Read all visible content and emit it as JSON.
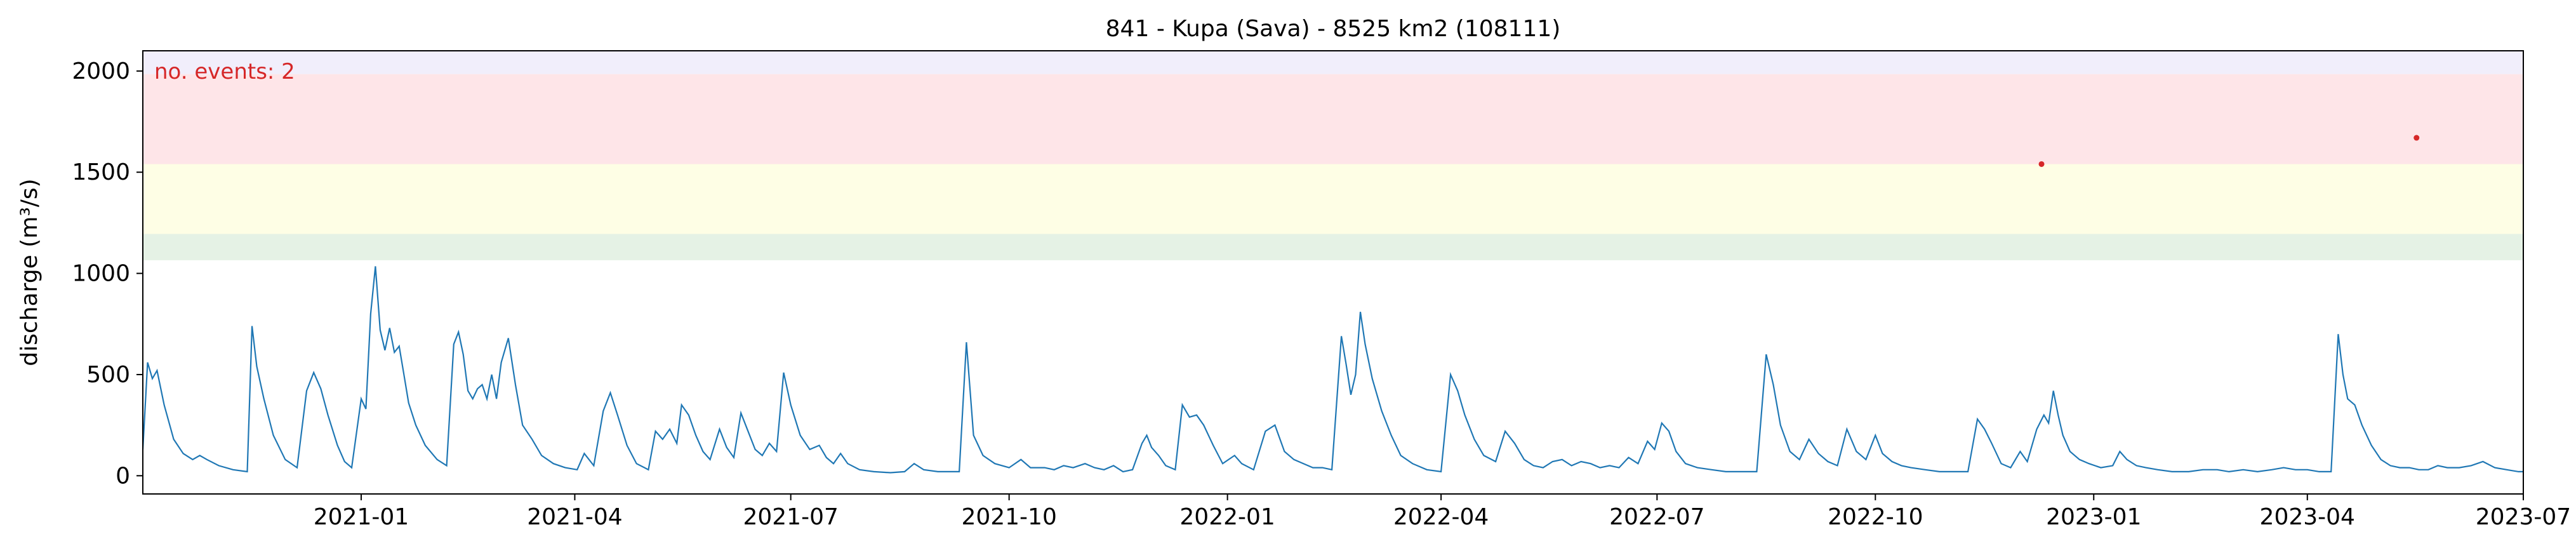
{
  "chart_data": {
    "type": "line",
    "title": "841 - Kupa (Sava) - 8525 km2 (108111)",
    "ylabel": "discharge (m³/s)",
    "xlabel": "",
    "annotation": "no. events: 2",
    "xlim": [
      "2020-10-01",
      "2023-07-01"
    ],
    "ylim": [
      -90,
      2100
    ],
    "x_ticks": [
      {
        "date": "2021-01-01",
        "label": "2021-01"
      },
      {
        "date": "2021-04-01",
        "label": "2021-04"
      },
      {
        "date": "2021-07-01",
        "label": "2021-07"
      },
      {
        "date": "2021-10-01",
        "label": "2021-10"
      },
      {
        "date": "2022-01-01",
        "label": "2022-01"
      },
      {
        "date": "2022-04-01",
        "label": "2022-04"
      },
      {
        "date": "2022-07-01",
        "label": "2022-07"
      },
      {
        "date": "2022-10-01",
        "label": "2022-10"
      },
      {
        "date": "2023-01-01",
        "label": "2023-01"
      },
      {
        "date": "2023-04-01",
        "label": "2023-04"
      },
      {
        "date": "2023-07-01",
        "label": "2023-07"
      }
    ],
    "y_ticks": [
      0,
      500,
      1000,
      1500,
      2000
    ],
    "bands": [
      {
        "y0": 1065,
        "y1": 1195,
        "color": "#e5f2e5"
      },
      {
        "y0": 1195,
        "y1": 1540,
        "color": "#fefee5"
      },
      {
        "y0": 1540,
        "y1": 1985,
        "color": "#fee5e8"
      },
      {
        "y0": 1985,
        "y1": 2100,
        "color": "#f1eefb"
      }
    ],
    "series": [
      {
        "color": "#1f77b4",
        "points": [
          [
            "2020-10-01",
            130
          ],
          [
            "2020-10-03",
            560
          ],
          [
            "2020-10-05",
            480
          ],
          [
            "2020-10-07",
            520
          ],
          [
            "2020-10-10",
            350
          ],
          [
            "2020-10-14",
            180
          ],
          [
            "2020-10-18",
            110
          ],
          [
            "2020-10-22",
            80
          ],
          [
            "2020-10-25",
            100
          ],
          [
            "2020-10-28",
            80
          ],
          [
            "2020-11-02",
            50
          ],
          [
            "2020-11-08",
            30
          ],
          [
            "2020-11-14",
            20
          ],
          [
            "2020-11-16",
            740
          ],
          [
            "2020-11-18",
            540
          ],
          [
            "2020-11-21",
            380
          ],
          [
            "2020-11-25",
            200
          ],
          [
            "2020-11-30",
            80
          ],
          [
            "2020-12-05",
            40
          ],
          [
            "2020-12-09",
            420
          ],
          [
            "2020-12-12",
            510
          ],
          [
            "2020-12-15",
            430
          ],
          [
            "2020-12-18",
            300
          ],
          [
            "2020-12-22",
            150
          ],
          [
            "2020-12-25",
            70
          ],
          [
            "2020-12-28",
            40
          ],
          [
            "2021-01-01",
            380
          ],
          [
            "2021-01-03",
            330
          ],
          [
            "2021-01-05",
            800
          ],
          [
            "2021-01-07",
            1035
          ],
          [
            "2021-01-09",
            720
          ],
          [
            "2021-01-11",
            620
          ],
          [
            "2021-01-13",
            730
          ],
          [
            "2021-01-15",
            610
          ],
          [
            "2021-01-17",
            640
          ],
          [
            "2021-01-19",
            500
          ],
          [
            "2021-01-21",
            360
          ],
          [
            "2021-01-24",
            250
          ],
          [
            "2021-01-28",
            150
          ],
          [
            "2021-02-02",
            80
          ],
          [
            "2021-02-06",
            50
          ],
          [
            "2021-02-09",
            650
          ],
          [
            "2021-02-11",
            710
          ],
          [
            "2021-02-13",
            600
          ],
          [
            "2021-02-15",
            420
          ],
          [
            "2021-02-17",
            380
          ],
          [
            "2021-02-19",
            430
          ],
          [
            "2021-02-21",
            450
          ],
          [
            "2021-02-23",
            380
          ],
          [
            "2021-02-25",
            500
          ],
          [
            "2021-02-27",
            380
          ],
          [
            "2021-03-01",
            560
          ],
          [
            "2021-03-04",
            680
          ],
          [
            "2021-03-07",
            450
          ],
          [
            "2021-03-10",
            250
          ],
          [
            "2021-03-14",
            180
          ],
          [
            "2021-03-18",
            100
          ],
          [
            "2021-03-23",
            60
          ],
          [
            "2021-03-28",
            40
          ],
          [
            "2021-04-02",
            30
          ],
          [
            "2021-04-05",
            110
          ],
          [
            "2021-04-09",
            50
          ],
          [
            "2021-04-13",
            320
          ],
          [
            "2021-04-16",
            410
          ],
          [
            "2021-04-19",
            300
          ],
          [
            "2021-04-23",
            150
          ],
          [
            "2021-04-27",
            60
          ],
          [
            "2021-05-02",
            30
          ],
          [
            "2021-05-05",
            220
          ],
          [
            "2021-05-08",
            180
          ],
          [
            "2021-05-11",
            230
          ],
          [
            "2021-05-14",
            160
          ],
          [
            "2021-05-16",
            350
          ],
          [
            "2021-05-19",
            300
          ],
          [
            "2021-05-22",
            200
          ],
          [
            "2021-05-25",
            120
          ],
          [
            "2021-05-28",
            80
          ],
          [
            "2021-06-01",
            230
          ],
          [
            "2021-06-04",
            140
          ],
          [
            "2021-06-07",
            90
          ],
          [
            "2021-06-10",
            310
          ],
          [
            "2021-06-13",
            220
          ],
          [
            "2021-06-16",
            130
          ],
          [
            "2021-06-19",
            100
          ],
          [
            "2021-06-22",
            160
          ],
          [
            "2021-06-25",
            120
          ],
          [
            "2021-06-28",
            510
          ],
          [
            "2021-07-01",
            350
          ],
          [
            "2021-07-05",
            200
          ],
          [
            "2021-07-09",
            130
          ],
          [
            "2021-07-13",
            150
          ],
          [
            "2021-07-16",
            90
          ],
          [
            "2021-07-19",
            60
          ],
          [
            "2021-07-22",
            110
          ],
          [
            "2021-07-25",
            60
          ],
          [
            "2021-07-30",
            30
          ],
          [
            "2021-08-05",
            20
          ],
          [
            "2021-08-12",
            15
          ],
          [
            "2021-08-18",
            20
          ],
          [
            "2021-08-22",
            60
          ],
          [
            "2021-08-26",
            30
          ],
          [
            "2021-09-01",
            20
          ],
          [
            "2021-09-10",
            20
          ],
          [
            "2021-09-13",
            660
          ],
          [
            "2021-09-16",
            200
          ],
          [
            "2021-09-20",
            100
          ],
          [
            "2021-09-25",
            60
          ],
          [
            "2021-10-01",
            40
          ],
          [
            "2021-10-06",
            80
          ],
          [
            "2021-10-10",
            40
          ],
          [
            "2021-10-16",
            40
          ],
          [
            "2021-10-20",
            30
          ],
          [
            "2021-10-24",
            50
          ],
          [
            "2021-10-28",
            40
          ],
          [
            "2021-11-02",
            60
          ],
          [
            "2021-11-06",
            40
          ],
          [
            "2021-11-10",
            30
          ],
          [
            "2021-11-14",
            50
          ],
          [
            "2021-11-18",
            20
          ],
          [
            "2021-11-22",
            30
          ],
          [
            "2021-11-26",
            160
          ],
          [
            "2021-11-28",
            200
          ],
          [
            "2021-11-30",
            140
          ],
          [
            "2021-12-03",
            100
          ],
          [
            "2021-12-06",
            50
          ],
          [
            "2021-12-10",
            30
          ],
          [
            "2021-12-13",
            350
          ],
          [
            "2021-12-16",
            290
          ],
          [
            "2021-12-19",
            300
          ],
          [
            "2021-12-22",
            250
          ],
          [
            "2021-12-26",
            150
          ],
          [
            "2021-12-30",
            60
          ],
          [
            "2022-01-04",
            100
          ],
          [
            "2022-01-07",
            60
          ],
          [
            "2022-01-12",
            30
          ],
          [
            "2022-01-17",
            220
          ],
          [
            "2022-01-21",
            250
          ],
          [
            "2022-01-25",
            120
          ],
          [
            "2022-01-29",
            80
          ],
          [
            "2022-02-02",
            60
          ],
          [
            "2022-02-06",
            40
          ],
          [
            "2022-02-10",
            40
          ],
          [
            "2022-02-14",
            30
          ],
          [
            "2022-02-18",
            690
          ],
          [
            "2022-02-20",
            550
          ],
          [
            "2022-02-22",
            400
          ],
          [
            "2022-02-24",
            500
          ],
          [
            "2022-02-26",
            810
          ],
          [
            "2022-02-28",
            650
          ],
          [
            "2022-03-03",
            480
          ],
          [
            "2022-03-07",
            320
          ],
          [
            "2022-03-11",
            200
          ],
          [
            "2022-03-15",
            100
          ],
          [
            "2022-03-20",
            60
          ],
          [
            "2022-03-26",
            30
          ],
          [
            "2022-04-01",
            20
          ],
          [
            "2022-04-05",
            500
          ],
          [
            "2022-04-08",
            420
          ],
          [
            "2022-04-11",
            300
          ],
          [
            "2022-04-15",
            180
          ],
          [
            "2022-04-19",
            100
          ],
          [
            "2022-04-24",
            70
          ],
          [
            "2022-04-28",
            220
          ],
          [
            "2022-05-02",
            160
          ],
          [
            "2022-05-06",
            80
          ],
          [
            "2022-05-10",
            50
          ],
          [
            "2022-05-14",
            40
          ],
          [
            "2022-05-18",
            70
          ],
          [
            "2022-05-22",
            80
          ],
          [
            "2022-05-26",
            50
          ],
          [
            "2022-05-30",
            70
          ],
          [
            "2022-06-03",
            60
          ],
          [
            "2022-06-07",
            40
          ],
          [
            "2022-06-11",
            50
          ],
          [
            "2022-06-15",
            40
          ],
          [
            "2022-06-19",
            90
          ],
          [
            "2022-06-23",
            60
          ],
          [
            "2022-06-27",
            170
          ],
          [
            "2022-06-30",
            130
          ],
          [
            "2022-07-03",
            260
          ],
          [
            "2022-07-06",
            220
          ],
          [
            "2022-07-09",
            120
          ],
          [
            "2022-07-13",
            60
          ],
          [
            "2022-07-18",
            40
          ],
          [
            "2022-07-24",
            30
          ],
          [
            "2022-07-30",
            20
          ],
          [
            "2022-08-06",
            20
          ],
          [
            "2022-08-12",
            20
          ],
          [
            "2022-08-16",
            600
          ],
          [
            "2022-08-19",
            450
          ],
          [
            "2022-08-22",
            250
          ],
          [
            "2022-08-26",
            120
          ],
          [
            "2022-08-30",
            80
          ],
          [
            "2022-09-03",
            180
          ],
          [
            "2022-09-07",
            110
          ],
          [
            "2022-09-11",
            70
          ],
          [
            "2022-09-15",
            50
          ],
          [
            "2022-09-19",
            230
          ],
          [
            "2022-09-23",
            120
          ],
          [
            "2022-09-27",
            80
          ],
          [
            "2022-10-01",
            200
          ],
          [
            "2022-10-04",
            110
          ],
          [
            "2022-10-08",
            70
          ],
          [
            "2022-10-12",
            50
          ],
          [
            "2022-10-16",
            40
          ],
          [
            "2022-10-22",
            30
          ],
          [
            "2022-10-28",
            20
          ],
          [
            "2022-11-03",
            20
          ],
          [
            "2022-11-09",
            20
          ],
          [
            "2022-11-13",
            280
          ],
          [
            "2022-11-16",
            230
          ],
          [
            "2022-11-19",
            160
          ],
          [
            "2022-11-23",
            60
          ],
          [
            "2022-11-27",
            40
          ],
          [
            "2022-12-01",
            120
          ],
          [
            "2022-12-04",
            70
          ],
          [
            "2022-12-08",
            230
          ],
          [
            "2022-12-11",
            300
          ],
          [
            "2022-12-13",
            260
          ],
          [
            "2022-12-15",
            420
          ],
          [
            "2022-12-17",
            300
          ],
          [
            "2022-12-19",
            200
          ],
          [
            "2022-12-22",
            120
          ],
          [
            "2022-12-26",
            80
          ],
          [
            "2022-12-30",
            60
          ],
          [
            "2023-01-04",
            40
          ],
          [
            "2023-01-09",
            50
          ],
          [
            "2023-01-12",
            120
          ],
          [
            "2023-01-15",
            80
          ],
          [
            "2023-01-19",
            50
          ],
          [
            "2023-01-23",
            40
          ],
          [
            "2023-01-28",
            30
          ],
          [
            "2023-02-03",
            20
          ],
          [
            "2023-02-10",
            20
          ],
          [
            "2023-02-16",
            30
          ],
          [
            "2023-02-22",
            30
          ],
          [
            "2023-02-27",
            20
          ],
          [
            "2023-03-05",
            30
          ],
          [
            "2023-03-11",
            20
          ],
          [
            "2023-03-17",
            30
          ],
          [
            "2023-03-22",
            40
          ],
          [
            "2023-03-27",
            30
          ],
          [
            "2023-04-01",
            30
          ],
          [
            "2023-04-06",
            20
          ],
          [
            "2023-04-11",
            20
          ],
          [
            "2023-04-14",
            700
          ],
          [
            "2023-04-16",
            500
          ],
          [
            "2023-04-18",
            380
          ],
          [
            "2023-04-21",
            350
          ],
          [
            "2023-04-24",
            250
          ],
          [
            "2023-04-28",
            150
          ],
          [
            "2023-05-02",
            80
          ],
          [
            "2023-05-06",
            50
          ],
          [
            "2023-05-10",
            40
          ],
          [
            "2023-05-14",
            40
          ],
          [
            "2023-05-18",
            30
          ],
          [
            "2023-05-22",
            30
          ],
          [
            "2023-05-26",
            50
          ],
          [
            "2023-05-30",
            40
          ],
          [
            "2023-06-04",
            40
          ],
          [
            "2023-06-09",
            50
          ],
          [
            "2023-06-14",
            70
          ],
          [
            "2023-06-19",
            40
          ],
          [
            "2023-06-24",
            30
          ],
          [
            "2023-06-29",
            20
          ],
          [
            "2023-07-01",
            20
          ]
        ]
      }
    ],
    "events": [
      {
        "date": "2022-12-10",
        "value": 1540,
        "color": "#d62728"
      },
      {
        "date": "2023-05-17",
        "value": 1670,
        "color": "#d62728"
      }
    ]
  }
}
